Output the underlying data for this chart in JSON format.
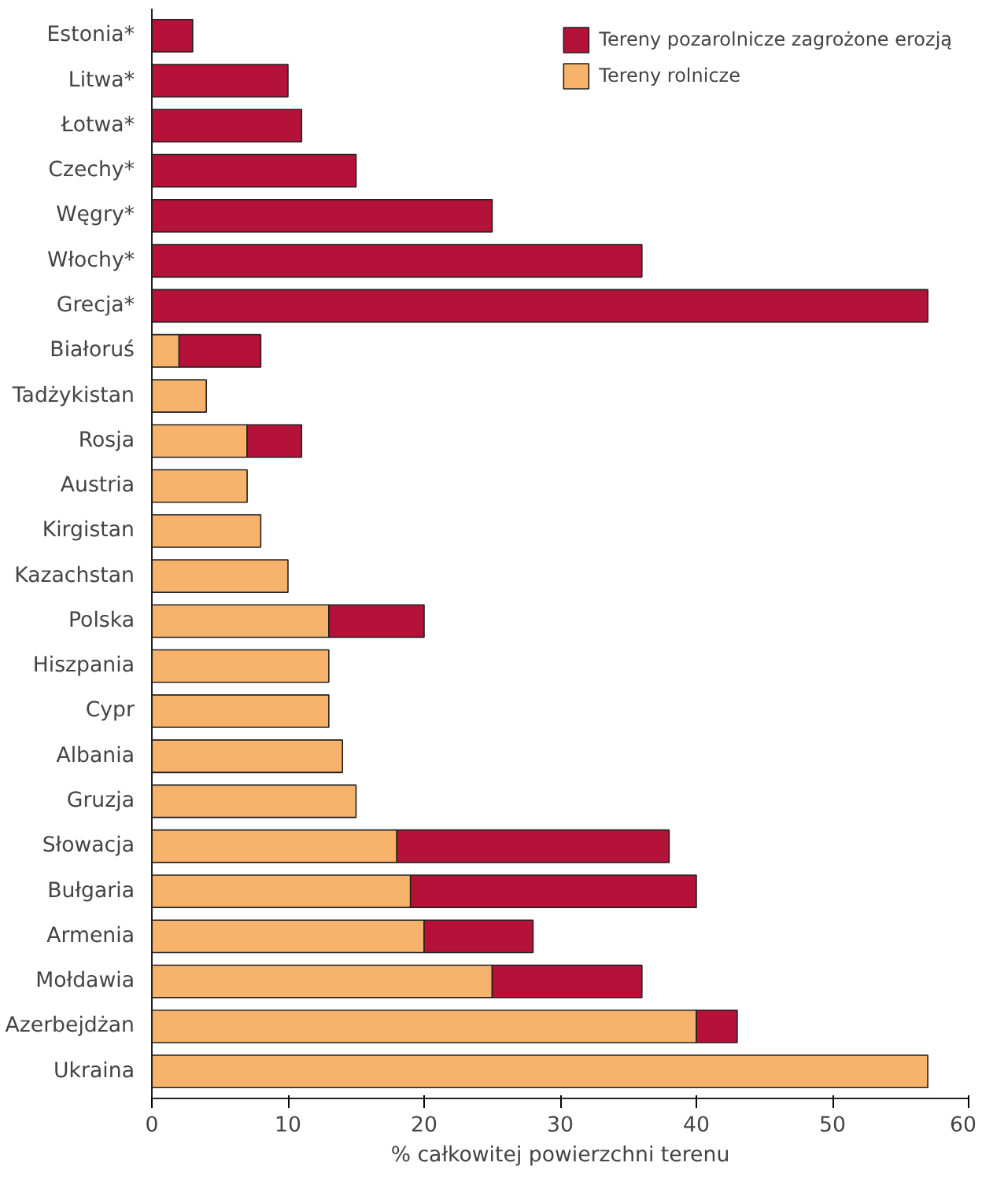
{
  "chart_data": {
    "type": "bar",
    "orientation": "horizontal",
    "stacked": true,
    "xlabel": "% całkowitej powierzchni terenu",
    "categories": [
      "Estonia*",
      "Litwa*",
      "Łotwa*",
      "Czechy*",
      "Węgry*",
      "Włochy*",
      "Grecja*",
      "Białoruś",
      "Tadżykistan",
      "Rosja",
      "Austria",
      "Kirgistan",
      "Kazachstan",
      "Polska",
      "Hiszpania",
      "Cypr",
      "Albania",
      "Gruzja",
      "Słowacja",
      "Bułgaria",
      "Armenia",
      "Mołdawia",
      "Azerbejdżan",
      "Ukraina"
    ],
    "series": [
      {
        "name": "Tereny rolnicze",
        "color": "#f7b36c",
        "values": [
          null,
          null,
          null,
          null,
          null,
          null,
          null,
          2,
          4,
          7,
          7,
          8,
          10,
          13,
          13,
          13,
          14,
          15,
          18,
          19,
          20,
          25,
          40,
          57
        ]
      },
      {
        "name": "Tereny pozarolnicze zagrożone erozją",
        "color": "#b5123a",
        "values": [
          3,
          10,
          11,
          15,
          25,
          36,
          57,
          6,
          null,
          4,
          null,
          null,
          null,
          7,
          null,
          null,
          null,
          null,
          20,
          21,
          8,
          11,
          3,
          null
        ]
      }
    ],
    "xlim": [
      0,
      60
    ],
    "xticks": [
      0,
      10,
      20,
      30,
      40,
      50,
      60
    ],
    "grid": false,
    "legend": "top right"
  }
}
